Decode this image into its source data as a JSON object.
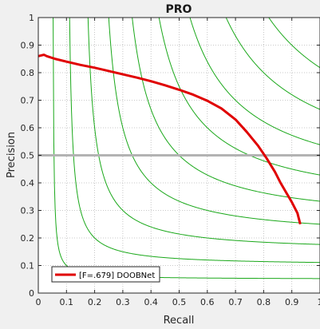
{
  "chart_data": {
    "type": "line",
    "title": "PRO",
    "xlabel": "Recall",
    "ylabel": "Precision",
    "xlim": [
      0,
      1
    ],
    "ylim": [
      0,
      1
    ],
    "xticks": [
      "0",
      "0.1",
      "0.2",
      "0.3",
      "0.4",
      "0.5",
      "0.6",
      "0.7",
      "0.8",
      "0.9",
      "1"
    ],
    "yticks": [
      "0",
      "0.1",
      "0.2",
      "0.3",
      "0.4",
      "0.5",
      "0.6",
      "0.7",
      "0.8",
      "0.9",
      "1"
    ],
    "grid": true,
    "legend_position": "bottom-left",
    "reference_line": {
      "y": 0.5,
      "color": "#b3b3b3"
    },
    "iso_f_curves": {
      "f_values": [
        0.1,
        0.2,
        0.3,
        0.4,
        0.5,
        0.6,
        0.7,
        0.8,
        0.9
      ],
      "color": "#1aa81a"
    },
    "series": [
      {
        "name": "[F=.679] DOOBNet",
        "color": "#e00000",
        "x": [
          0.0,
          0.02,
          0.03,
          0.06,
          0.1,
          0.15,
          0.2,
          0.25,
          0.3,
          0.35,
          0.4,
          0.45,
          0.5,
          0.55,
          0.6,
          0.65,
          0.7,
          0.74,
          0.78,
          0.81,
          0.84,
          0.86,
          0.88,
          0.9,
          0.92,
          0.93
        ],
        "y": [
          0.86,
          0.865,
          0.86,
          0.85,
          0.84,
          0.828,
          0.818,
          0.806,
          0.794,
          0.782,
          0.769,
          0.754,
          0.738,
          0.72,
          0.698,
          0.67,
          0.63,
          0.585,
          0.535,
          0.49,
          0.44,
          0.4,
          0.365,
          0.33,
          0.29,
          0.25
        ]
      }
    ]
  }
}
